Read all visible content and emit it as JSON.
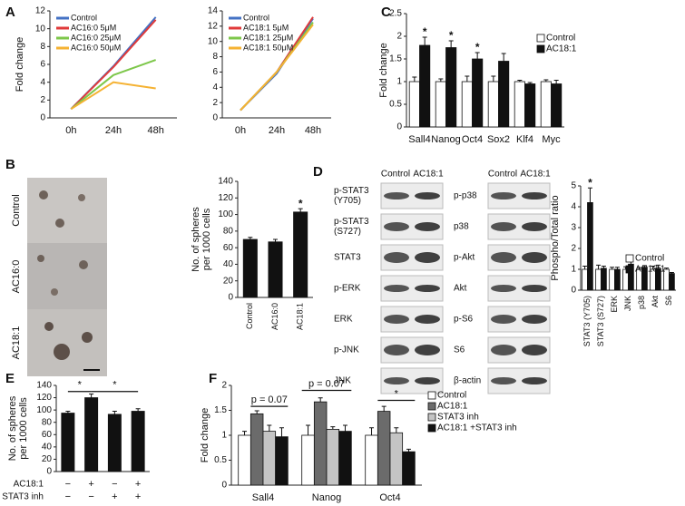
{
  "panel_labels": [
    "A",
    "B",
    "C",
    "D",
    "E",
    "F"
  ],
  "images": {
    "labels": [
      "Control",
      "AC16:0",
      "AC18:1"
    ]
  },
  "blots": {
    "lanes": [
      "Control",
      "AC18:1"
    ],
    "left": [
      [
        "p-STAT3",
        "(Y705)"
      ],
      [
        "p-STAT3",
        "(S727)"
      ],
      [
        "STAT3"
      ],
      [
        "p-ERK"
      ],
      [
        "ERK"
      ],
      [
        "p-JNK"
      ],
      [
        "JNK"
      ]
    ],
    "right": [
      [
        "p-p38"
      ],
      [
        "p38"
      ],
      [
        "p-Akt"
      ],
      [
        "Akt"
      ],
      [
        "p-S6"
      ],
      [
        "S6"
      ],
      [
        "β-actin"
      ]
    ]
  },
  "chart_data": [
    {
      "type": "line",
      "ylabel": [
        "Fold change"
      ],
      "categories": [
        "0h",
        "24h",
        "48h"
      ],
      "ylim": [
        0,
        12
      ],
      "yticks": [
        0,
        2,
        4,
        6,
        8,
        10,
        12
      ],
      "series": [
        {
          "name": "Control",
          "color": "#4472c4",
          "values": [
            1,
            5.8,
            11.3
          ]
        },
        {
          "name": "AC16:0 5μM",
          "color": "#e03a3a",
          "values": [
            1,
            5.7,
            11
          ]
        },
        {
          "name": "AC16:0 25μM",
          "color": "#7dc74a",
          "values": [
            1,
            4.8,
            6.5
          ]
        },
        {
          "name": "AC16:0 50μM",
          "color": "#f5b233",
          "values": [
            1,
            4,
            3.3
          ]
        }
      ]
    },
    {
      "type": "line",
      "categories": [
        "0h",
        "24h",
        "48h"
      ],
      "ylim": [
        0,
        14
      ],
      "yticks": [
        0,
        2,
        4,
        6,
        8,
        10,
        12,
        14
      ],
      "series": [
        {
          "name": "Control",
          "color": "#4472c4",
          "values": [
            1,
            5.8,
            13
          ]
        },
        {
          "name": "AC18:1 5μM",
          "color": "#e03a3a",
          "values": [
            1,
            6,
            13.2
          ]
        },
        {
          "name": "AC18:1 25μM",
          "color": "#7dc74a",
          "values": [
            1,
            6,
            12.5
          ]
        },
        {
          "name": "AC18:1 50μM",
          "color": "#f5b233",
          "values": [
            1,
            6,
            12.2
          ]
        }
      ]
    },
    {
      "type": "bar",
      "ylabel": [
        "Fold change"
      ],
      "categories": [
        "Sall4",
        "Nanog",
        "Oct4",
        "Sox2",
        "Klf4",
        "Myc"
      ],
      "ylim": [
        0,
        2.5
      ],
      "yticks": [
        0,
        0.5,
        1,
        1.5,
        2,
        2.5
      ],
      "series": [
        {
          "name": "Control",
          "color": "#ffffff",
          "values": [
            1,
            1,
            1,
            1,
            1,
            1
          ],
          "errors": [
            0.1,
            0.06,
            0.12,
            0.12,
            0.03,
            0.04
          ]
        },
        {
          "name": "AC18:1",
          "color": "#111111",
          "values": [
            1.8,
            1.75,
            1.5,
            1.45,
            0.95,
            0.95
          ],
          "errors": [
            0.18,
            0.15,
            0.14,
            0.17,
            0.03,
            0.08
          ]
        }
      ],
      "annotations": [
        "*",
        "*",
        "*"
      ]
    },
    {
      "type": "bar",
      "ylabel": [
        "No. of spheres",
        "per 1000 cells"
      ],
      "categories": [
        "Control",
        "AC16:0",
        "AC18:1"
      ],
      "ylim": [
        0,
        140
      ],
      "yticks": [
        0,
        20,
        40,
        60,
        80,
        100,
        120,
        140
      ],
      "color": "#111111",
      "values": [
        70,
        67,
        103
      ],
      "errors": [
        2.5,
        3,
        4
      ],
      "annotations": [
        "*"
      ]
    },
    {
      "type": "bar",
      "ylabel": [
        "Phospho/Total ratio"
      ],
      "categories": [
        "STAT3 (Y705)",
        "STAT3 (S727)",
        "ERK",
        "JNK",
        "p38",
        "Akt",
        "S6"
      ],
      "ylim": [
        0,
        5
      ],
      "yticks": [
        0,
        1,
        2,
        3,
        4,
        5
      ],
      "series": [
        {
          "name": "Control",
          "color": "#ffffff",
          "values": [
            1,
            1,
            1,
            1,
            1,
            1,
            1
          ],
          "errors": [
            0.15,
            0.2,
            0.1,
            0.12,
            0.08,
            0.15,
            0.06
          ]
        },
        {
          "name": "AC18:1",
          "color": "#111111",
          "values": [
            4.2,
            1.05,
            1,
            1.25,
            1.1,
            1.05,
            0.8
          ],
          "errors": [
            0.7,
            0.1,
            0.1,
            0.12,
            0.08,
            0.15,
            0.05
          ]
        }
      ],
      "annotations": [
        "*"
      ]
    },
    {
      "type": "bar",
      "ylabel": [
        "No. of spheres",
        "per 1000 cells"
      ],
      "ylim": [
        0,
        140
      ],
      "yticks": [
        0,
        20,
        40,
        60,
        80,
        100,
        120,
        140
      ],
      "color": "#111111",
      "values": [
        95,
        120,
        93,
        98
      ],
      "errors": [
        3,
        6,
        5,
        4
      ],
      "conditions": [
        {
          "name": "AC18:1",
          "labels": [
            "−",
            "+",
            "−",
            "+"
          ]
        },
        {
          "name": "STAT3 inh",
          "labels": [
            "−",
            "−",
            "+",
            "+"
          ]
        }
      ],
      "annotations": [
        "*",
        "*"
      ]
    },
    {
      "type": "bar",
      "ylabel": [
        "Fold change"
      ],
      "categories": [
        "Sall4",
        "Nanog",
        "Oct4"
      ],
      "ylim": [
        0,
        2
      ],
      "yticks": [
        0,
        0.5,
        1,
        1.5,
        2
      ],
      "series": [
        {
          "name": "Control",
          "color": "#ffffff",
          "values": [
            1,
            1,
            1
          ],
          "errors": [
            0.08,
            0.2,
            0.15
          ]
        },
        {
          "name": "AC18:1",
          "color": "#6b6b6b",
          "values": [
            1.43,
            1.67,
            1.48
          ],
          "errors": [
            0.06,
            0.08,
            0.1
          ]
        },
        {
          "name": "STAT3 inh",
          "color": "#c4c4c4",
          "values": [
            1.08,
            1.12,
            1.05
          ],
          "errors": [
            0.12,
            0.05,
            0.1
          ]
        },
        {
          "name": "AC18:1 +STAT3 inh",
          "color": "#111111",
          "values": [
            0.97,
            1.08,
            0.67
          ],
          "errors": [
            0.18,
            0.12,
            0.05
          ]
        }
      ],
      "annotations": [
        "p = 0.07",
        "p = 0.07",
        "*"
      ]
    }
  ]
}
